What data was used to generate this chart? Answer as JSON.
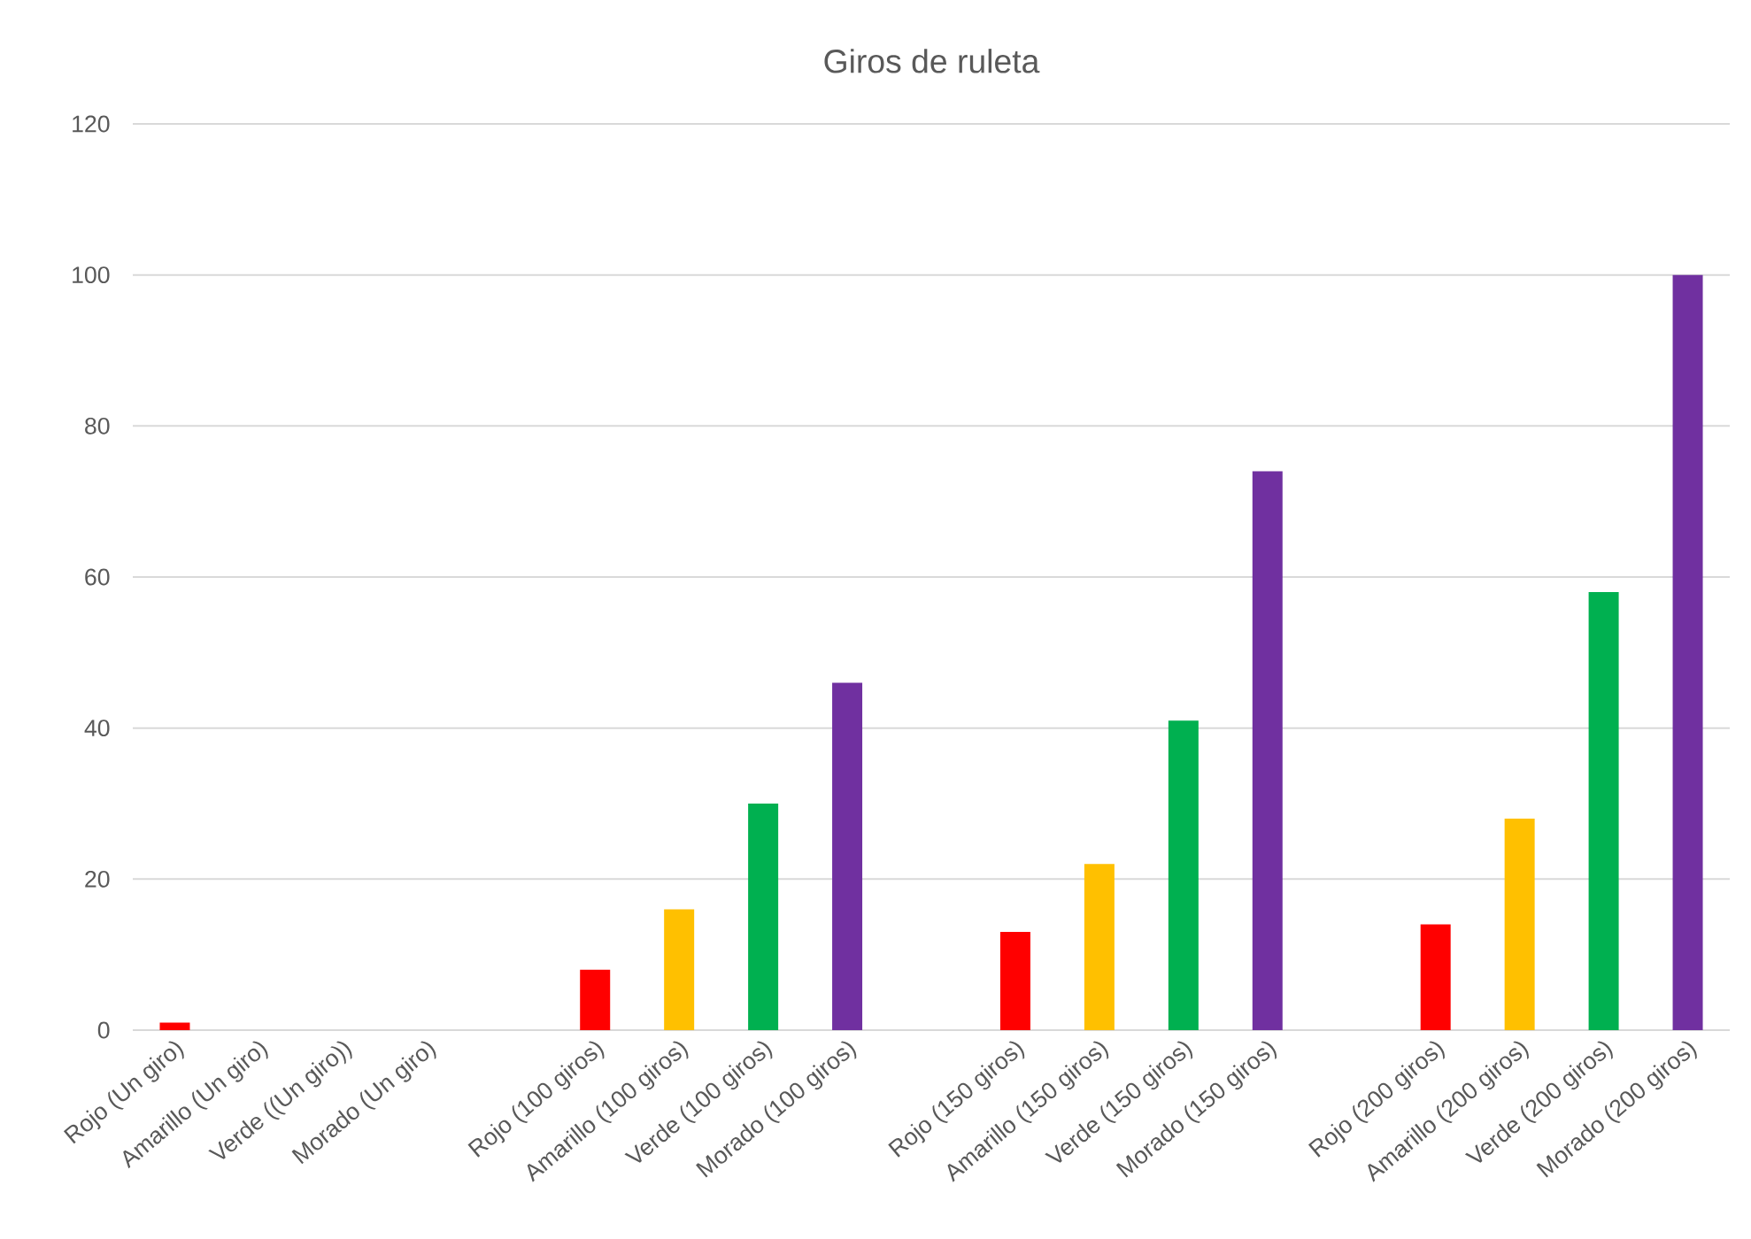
{
  "chart_data": {
    "type": "bar",
    "title": "Giros de ruleta",
    "categories": [
      "Rojo (Un giro)",
      "Amarillo (Un giro)",
      "Verde ((Un giro))",
      "Morado (Un giro)",
      null,
      "Rojo (100 giros)",
      "Amarillo (100 giros)",
      "Verde (100 giros)",
      "Morado (100 giros)",
      null,
      "Rojo (150 giros)",
      "Amarillo (150 giros)",
      "Verde (150 giros)",
      "Morado (150 giros)",
      null,
      "Rojo (200 giros)",
      "Amarillo (200 giros)",
      "Verde (200 giros)",
      "Morado (200 giros)"
    ],
    "values": [
      1,
      0,
      0,
      0,
      null,
      8,
      16,
      30,
      46,
      null,
      13,
      22,
      41,
      74,
      null,
      14,
      28,
      58,
      100
    ],
    "colors": [
      "#ff0000",
      "#ffc000",
      "#00b050",
      "#7030a0",
      "#ffffff",
      "#ff0000",
      "#ffc000",
      "#00b050",
      "#7030a0",
      "#ffffff",
      "#ff0000",
      "#ffc000",
      "#00b050",
      "#7030a0",
      "#ffffff",
      "#ff0000",
      "#ffc000",
      "#00b050",
      "#7030a0"
    ],
    "ylim": [
      0,
      120
    ],
    "yticks": [
      0,
      20,
      40,
      60,
      80,
      100,
      120
    ],
    "grid": "y"
  }
}
